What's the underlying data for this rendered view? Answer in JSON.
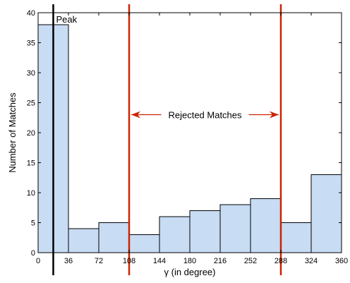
{
  "chart_data": {
    "type": "bar",
    "bin_edges": [
      0,
      36,
      72,
      108,
      144,
      180,
      216,
      252,
      288,
      324,
      360
    ],
    "values": [
      38,
      4,
      5,
      3,
      6,
      7,
      8,
      9,
      5,
      13
    ],
    "xticks": [
      0,
      36,
      72,
      108,
      144,
      180,
      216,
      252,
      288,
      324,
      360
    ],
    "yticks": [
      0,
      5,
      10,
      15,
      20,
      25,
      30,
      35,
      40
    ],
    "xlim": [
      0,
      360
    ],
    "ylim": [
      0,
      40
    ],
    "xlabel": "γ (in degree)",
    "ylabel": "Number of Matches",
    "bar_color": "#c8dcf4",
    "bar_edge_color": "#000000",
    "grid": false,
    "annotations": {
      "peak_x": 18,
      "peak_label": "Peak",
      "peak_color": "#000000",
      "reject_lines_x": [
        108,
        288
      ],
      "reject_color": "#cc2200",
      "reject_label": "Rejected Matches",
      "reject_label_y": 23
    }
  }
}
